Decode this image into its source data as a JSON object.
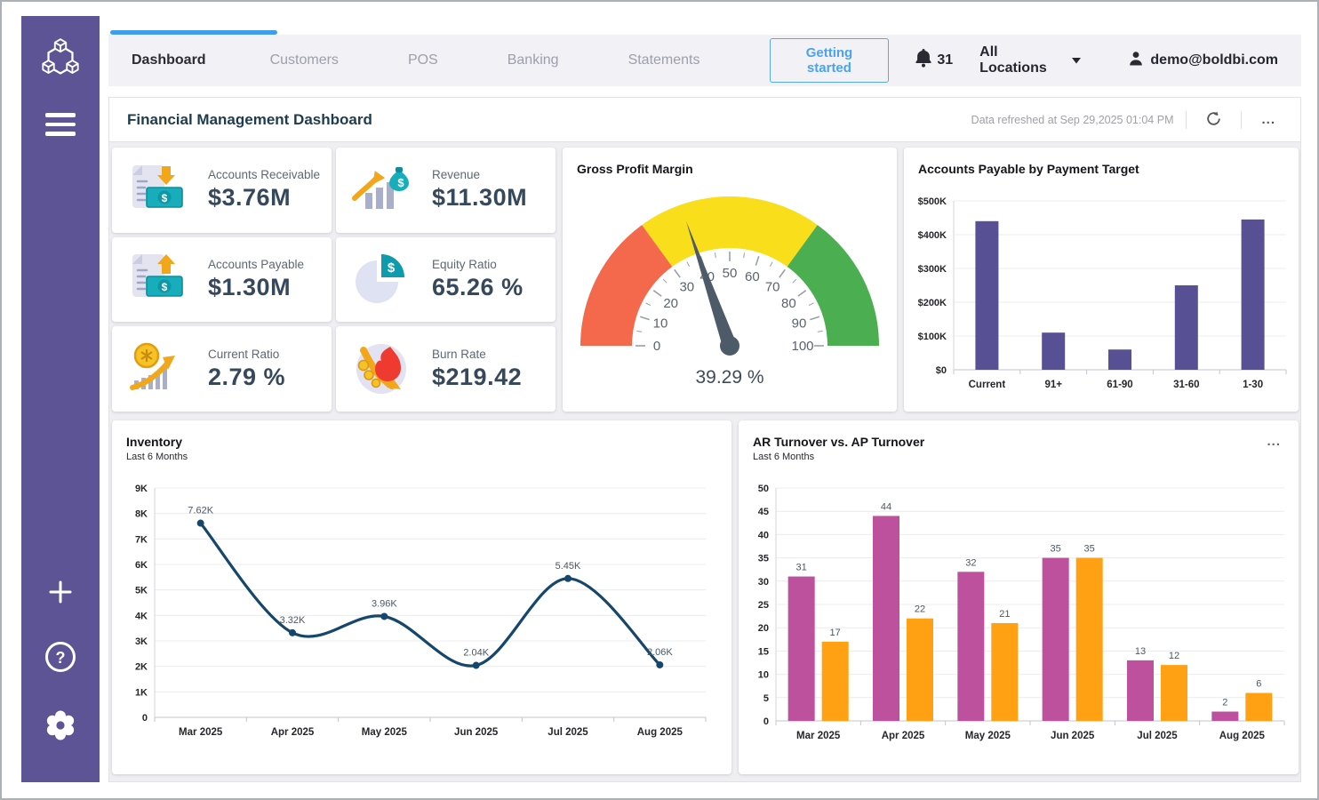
{
  "colors": {
    "accent_blue": "#3F9DF0",
    "sidebar_purple": "#5C5494",
    "bar_purple": "#575094",
    "ar_magenta": "#BE519E",
    "ap_orange": "#FFA113",
    "line_navy": "#15466B",
    "gauge_red": "#F4694B",
    "gauge_yellow": "#F8DE1B",
    "gauge_green": "#4BAE50",
    "needle": "#4D5A68"
  },
  "sidebar": {
    "icons": [
      "boldbi-logo",
      "menu-icon",
      "add-icon",
      "help-icon",
      "settings-icon"
    ]
  },
  "topnav": {
    "tabs": [
      {
        "label": "Dashboard",
        "active": true
      },
      {
        "label": "Customers",
        "active": false
      },
      {
        "label": "POS",
        "active": false
      },
      {
        "label": "Banking",
        "active": false
      },
      {
        "label": "Statements",
        "active": false
      }
    ],
    "getting_started_label": "Getting started",
    "notifications_count": "31",
    "location_selector": "All Locations",
    "user_email": "demo@boldbi.com"
  },
  "header": {
    "title": "Financial Management Dashboard",
    "refreshed_text": "Data refreshed at Sep 29,2025 01:04 PM",
    "more_label": "..."
  },
  "kpis": [
    {
      "label": "Accounts Receivable",
      "value": "$3.76M",
      "icon": "accounts-receivable-icon"
    },
    {
      "label": "Revenue",
      "value": "$11.30M",
      "icon": "revenue-icon"
    },
    {
      "label": "Accounts Payable",
      "value": "$1.30M",
      "icon": "accounts-payable-icon"
    },
    {
      "label": "Equity Ratio",
      "value": "65.26 %",
      "icon": "equity-ratio-icon"
    },
    {
      "label": "Current Ratio",
      "value": "2.79 %",
      "icon": "current-ratio-icon"
    },
    {
      "label": "Burn Rate",
      "value": "$219.42",
      "icon": "burn-rate-icon"
    }
  ],
  "chart_data": [
    {
      "id": "gross_profit_gauge",
      "type": "gauge",
      "title": "Gross Profit Margin",
      "value": 39.29,
      "value_label": "39.29 %",
      "min": 0,
      "max": 100,
      "major_tick": 10,
      "minor_tick": 5,
      "tick_labels": [
        "0",
        "10",
        "20",
        "30",
        "40",
        "50",
        "60",
        "70",
        "80",
        "90",
        "100"
      ],
      "segments": [
        {
          "from": 0,
          "to": 30,
          "color": "#F4694B"
        },
        {
          "from": 30,
          "to": 70,
          "color": "#F8DE1B"
        },
        {
          "from": 70,
          "to": 100,
          "color": "#4BAE50"
        }
      ],
      "needle_color": "#4D5A68"
    },
    {
      "id": "ap_by_payment_target",
      "type": "bar",
      "title": "Accounts Payable by Payment Target",
      "categories": [
        "Current",
        "91+",
        "61-90",
        "31-60",
        "1-30"
      ],
      "values": [
        440000,
        110000,
        60000,
        250000,
        445000
      ],
      "bar_color": "#575094",
      "ylim": [
        0,
        500000
      ],
      "ytick_step": 100000,
      "ytick_labels": [
        "$0",
        "$100K",
        "$200K",
        "$300K",
        "$400K",
        "$500K"
      ],
      "grid": true,
      "legend": "none"
    },
    {
      "id": "inventory",
      "type": "line",
      "title": "Inventory",
      "subtitle": "Last 6 Months",
      "categories": [
        "Mar 2025",
        "Apr 2025",
        "May 2025",
        "Jun 2025",
        "Jul 2025",
        "Aug 2025"
      ],
      "values": [
        7620,
        3320,
        3960,
        2040,
        5450,
        2060
      ],
      "point_labels": [
        "7.62K",
        "3.32K",
        "3.96K",
        "2.04K",
        "5.45K",
        "2.06K"
      ],
      "line_color": "#15466B",
      "smooth": true,
      "ylim": [
        0,
        9000
      ],
      "ytick_step": 1000,
      "ytick_labels": [
        "0",
        "1K",
        "2K",
        "3K",
        "4K",
        "5K",
        "6K",
        "7K",
        "8K",
        "9K"
      ],
      "grid": true,
      "legend": "none"
    },
    {
      "id": "ar_vs_ap",
      "type": "grouped_bar",
      "title": "AR Turnover vs. AP Turnover",
      "subtitle": "Last 6 Months",
      "categories": [
        "Mar 2025",
        "Apr 2025",
        "May 2025",
        "Jun 2025",
        "Jul 2025",
        "Aug 2025"
      ],
      "series": [
        {
          "name": "AR Turnover",
          "color": "#BE519E",
          "values": [
            31,
            44,
            32,
            35,
            13,
            2
          ]
        },
        {
          "name": "AP Turnover",
          "color": "#FFA113",
          "values": [
            17,
            22,
            21,
            35,
            12,
            6
          ]
        }
      ],
      "ylim": [
        0,
        50
      ],
      "ytick_step": 5,
      "ytick_labels": [
        "0",
        "5",
        "10",
        "15",
        "20",
        "25",
        "30",
        "35",
        "40",
        "45",
        "50"
      ],
      "grid": true,
      "legend": "none"
    }
  ]
}
